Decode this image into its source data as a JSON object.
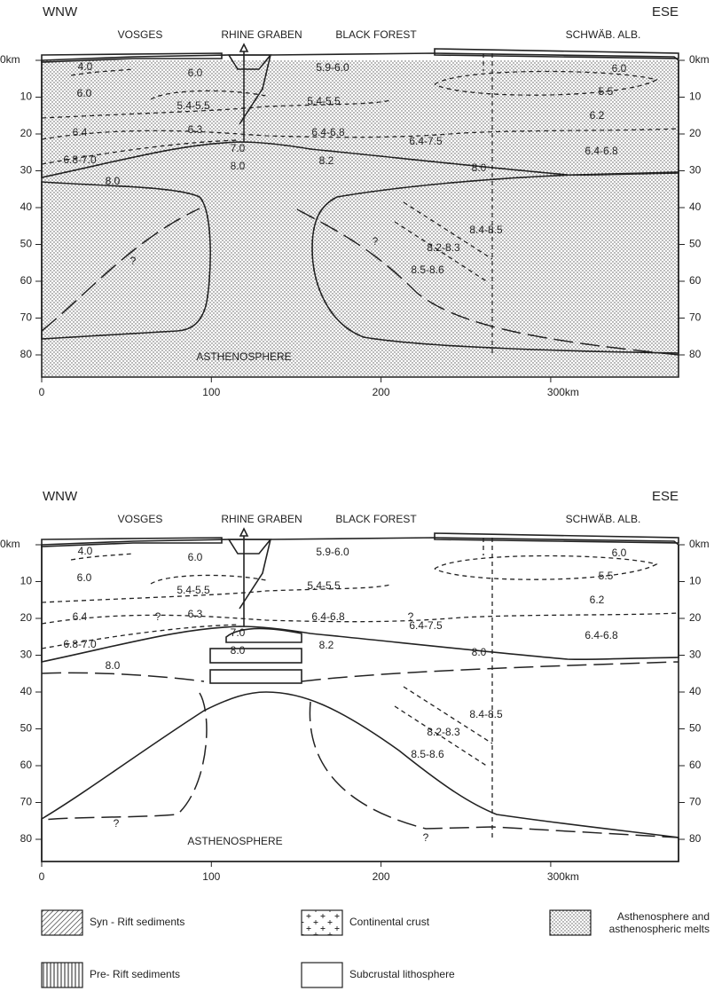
{
  "panels": [
    {
      "left_title": "WNW",
      "right_title": "ESE",
      "regions": [
        "VOSGES",
        "RHINE GRABEN",
        "BLACK FOREST",
        "SCHWÄB. ALB."
      ],
      "depth_labels_left": [
        "0km",
        "10",
        "20",
        "30",
        "40",
        "50",
        "60",
        "70",
        "80"
      ],
      "depth_labels_right": [
        "0km",
        "10",
        "20",
        "30",
        "40",
        "50",
        "60",
        "70",
        "80"
      ],
      "distance_labels": [
        "0",
        "100",
        "200",
        "300km"
      ],
      "velocity_labels": [
        "4.0",
        "6.0",
        "5.9-6.0",
        "6.0",
        "6.0",
        "5.4-5.5",
        "5.4-5.5",
        "5.5",
        "6.2",
        "6.4",
        "6.3",
        "6.4-6.8",
        "6.4-7.5",
        "6.4-6.8",
        "7.0",
        "6.8-7.0",
        "8.0",
        "8.2",
        "8.0",
        "8.0",
        "8.4-8.5",
        "8.2-8.3",
        "8.5-8.6"
      ],
      "question_marks": [
        "?",
        "?"
      ],
      "asthenosphere": "ASTHENOSPHERE"
    },
    {
      "left_title": "WNW",
      "right_title": "ESE",
      "regions": [
        "VOSGES",
        "RHINE GRABEN",
        "BLACK FOREST",
        "SCHWÄB. ALB."
      ],
      "depth_labels_left": [
        "0km",
        "10",
        "20",
        "30",
        "40",
        "50",
        "60",
        "70",
        "80"
      ],
      "depth_labels_right": [
        "0km",
        "10",
        "20",
        "30",
        "40",
        "50",
        "60",
        "70",
        "80"
      ],
      "distance_labels": [
        "0",
        "100",
        "200",
        "300km"
      ],
      "velocity_labels": [
        "4.0",
        "6.0",
        "5.9-6.0",
        "6.0",
        "6.0",
        "5.4-5.5",
        "5.4-5.5",
        "5.5",
        "6.2",
        "6.4",
        "6.3",
        "6.4-6.8",
        "6.4-7.5",
        "6.4-6.8",
        "7.0",
        "6.8-7.0",
        "8.0",
        "8.2",
        "8.0",
        "8.0",
        "8.4-8.5",
        "8.2-8.3",
        "8.5-8.6"
      ],
      "question_marks": [
        "?",
        "?",
        "?",
        "?"
      ],
      "asthenosphere": "ASTHENOSPHERE"
    }
  ],
  "legend": [
    {
      "label": "Syn - Rift sediments"
    },
    {
      "label": "Continental crust"
    },
    {
      "label": "Asthenosphere and",
      "label2": "asthenospheric melts"
    },
    {
      "label": "Pre- Rift sediments"
    },
    {
      "label": "Subcrustal lithosphere"
    }
  ]
}
